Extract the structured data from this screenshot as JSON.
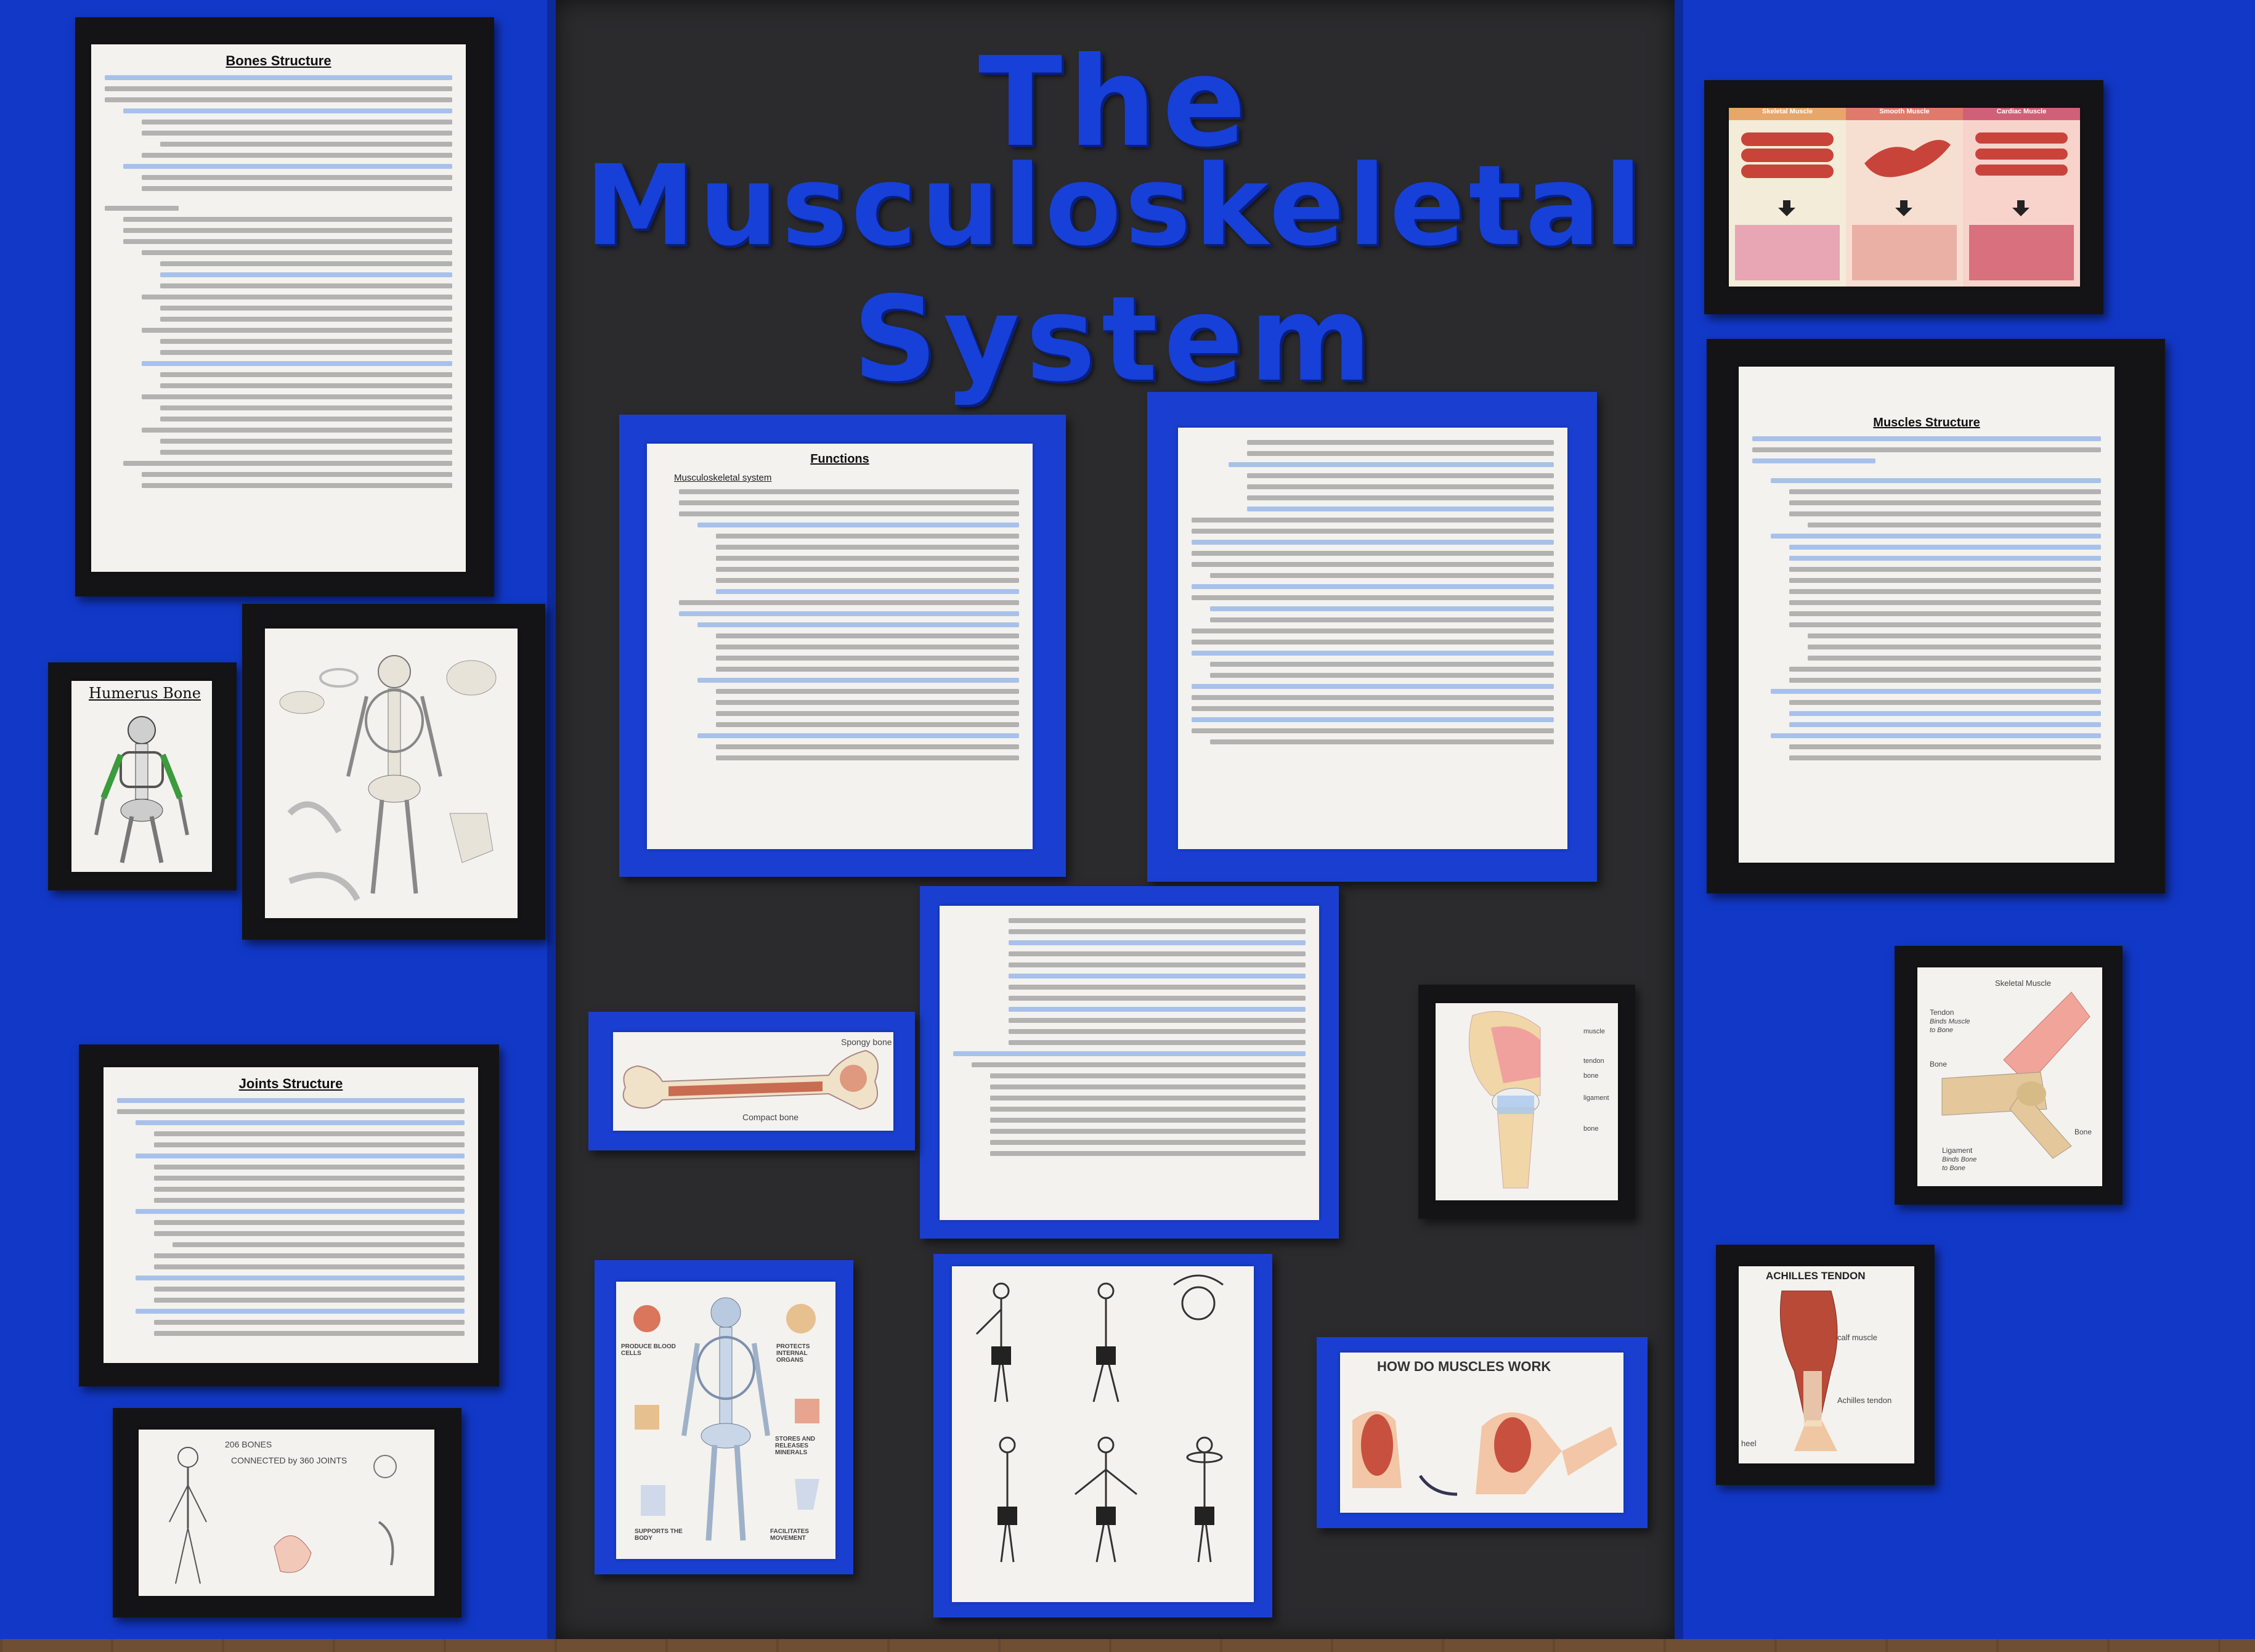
{
  "board": {
    "title_line_1": "The",
    "title_line_2": "Musculoskeletal",
    "title_line_3": "System"
  },
  "documents": {
    "bones_structure": {
      "title": "Bones Structure"
    },
    "functions": {
      "title": "Functions",
      "subtitle": "Musculoskeletal system"
    },
    "muscles_structure": {
      "title": "Muscles Structure"
    },
    "joints_structure": {
      "title": "Joints Structure"
    }
  },
  "images": {
    "humerus": {
      "caption": "Humerus Bone"
    },
    "spongy_bone": {
      "label_1": "Spongy bone",
      "label_2": "Compact bone"
    },
    "knee": {
      "labels": [
        "muscle",
        "tendon",
        "bone",
        "ligament",
        "bone"
      ]
    },
    "skeletal_muscle": {
      "labels": [
        "Skeletal Muscle",
        "Tendon",
        "Binds Muscle",
        "to Bone",
        "Bone",
        "Bone",
        "Ligament",
        "Binds Bone",
        "to Bone"
      ]
    },
    "achilles": {
      "title": "ACHILLES TENDON",
      "labels": [
        "calf muscle",
        "Achilles tendon",
        "heel"
      ]
    },
    "muscle_work": {
      "title": "HOW DO MUSCLES WORK"
    },
    "bone_functions": {
      "labels": [
        "PRODUCE BLOOD CELLS",
        "PROTECTS INTERNAL ORGANS",
        "STORES AND RELEASES MINERALS",
        "SUPPORTS THE BODY",
        "FACILITATES MOVEMENT"
      ]
    },
    "muscle_types": {
      "labels": [
        "Skeletal Muscle",
        "Smooth Muscle",
        "Cardiac Muscle"
      ]
    },
    "bones_joints": {
      "labels": [
        "206 BONES",
        "CONNECTED by 360 JOINTS"
      ]
    }
  },
  "colors": {
    "board_blue": "#1238c8",
    "center_black": "#2b2b2e",
    "title_blue": "#1740d8"
  }
}
